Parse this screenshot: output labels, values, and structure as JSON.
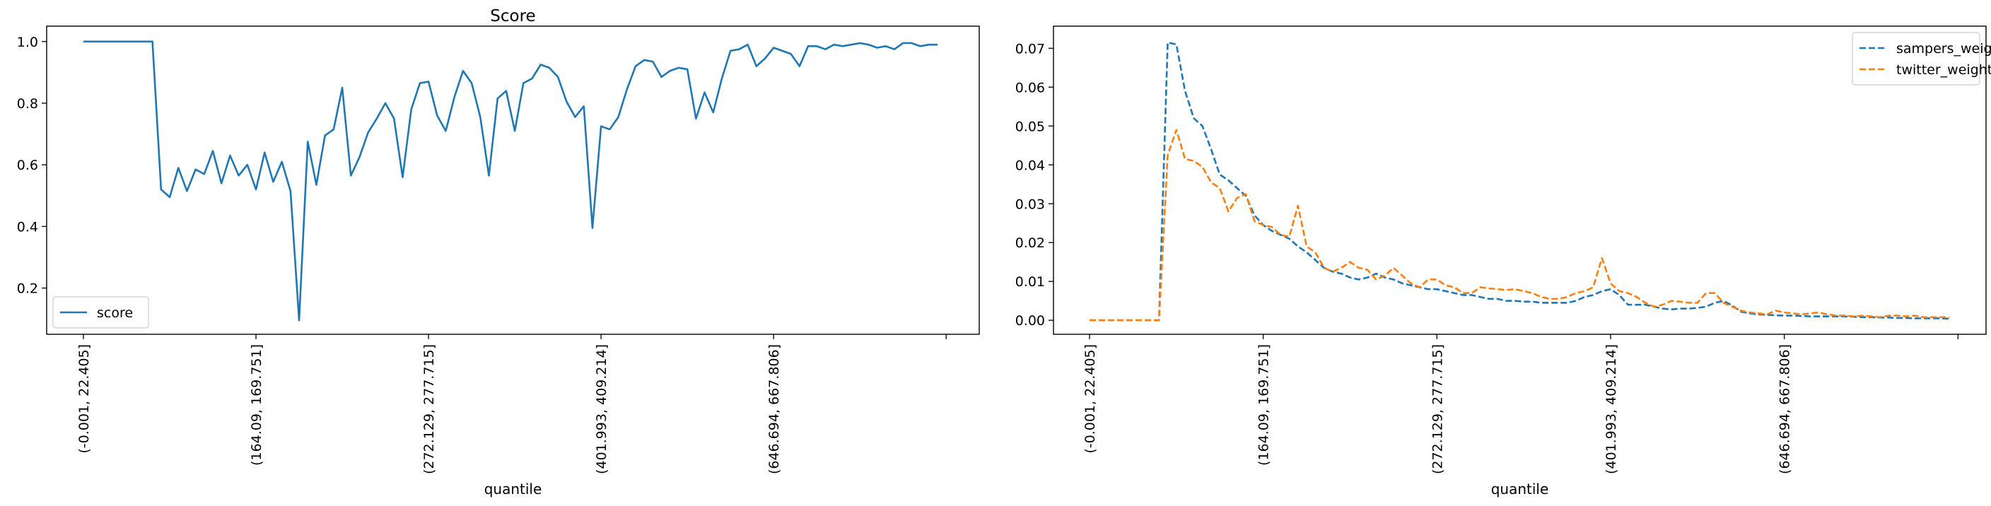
{
  "chart_data": [
    {
      "type": "line",
      "title": "Score",
      "xlabel": "quantile",
      "ylabel": "",
      "ylim": [
        0.05,
        1.05
      ],
      "yticks": [
        "0.2",
        "0.4",
        "0.6",
        "0.8",
        "1.0"
      ],
      "ytick_values": [
        0.2,
        0.4,
        0.6,
        0.8,
        1.0
      ],
      "xticks": [
        "(-0.001, 22.405]",
        "(164.09, 169.751]",
        "(272.129, 277.715]",
        "(401.993, 409.214]",
        "(646.694, 667.806]",
        ""
      ],
      "xtick_indices": [
        0,
        20,
        40,
        60,
        80,
        100
      ],
      "legend": "lower-left",
      "series": [
        {
          "name": "score",
          "color": "#1f77b4",
          "style": "solid",
          "values": [
            1.0,
            1.0,
            1.0,
            1.0,
            1.0,
            1.0,
            1.0,
            1.0,
            1.0,
            0.52,
            0.495,
            0.59,
            0.515,
            0.585,
            0.57,
            0.645,
            0.54,
            0.63,
            0.565,
            0.6,
            0.52,
            0.64,
            0.545,
            0.61,
            0.515,
            0.095,
            0.675,
            0.535,
            0.695,
            0.715,
            0.85,
            0.565,
            0.625,
            0.705,
            0.75,
            0.8,
            0.75,
            0.56,
            0.78,
            0.865,
            0.87,
            0.76,
            0.71,
            0.82,
            0.905,
            0.865,
            0.755,
            0.565,
            0.815,
            0.84,
            0.71,
            0.865,
            0.88,
            0.925,
            0.915,
            0.885,
            0.805,
            0.755,
            0.79,
            0.395,
            0.725,
            0.715,
            0.755,
            0.845,
            0.92,
            0.94,
            0.935,
            0.885,
            0.905,
            0.915,
            0.91,
            0.75,
            0.835,
            0.77,
            0.88,
            0.97,
            0.975,
            0.99,
            0.92,
            0.945,
            0.98,
            0.97,
            0.96,
            0.92,
            0.985,
            0.985,
            0.975,
            0.99,
            0.985,
            0.99,
            0.995,
            0.99,
            0.98,
            0.985,
            0.975,
            0.995,
            0.995,
            0.985,
            0.99,
            0.99
          ]
        }
      ]
    },
    {
      "type": "line",
      "title": "",
      "xlabel": "quantile",
      "ylabel": "",
      "ylim": [
        -0.0036,
        0.0757
      ],
      "yticks": [
        "0.00",
        "0.01",
        "0.02",
        "0.03",
        "0.04",
        "0.05",
        "0.06",
        "0.07"
      ],
      "ytick_values": [
        0,
        0.01,
        0.02,
        0.03,
        0.04,
        0.05,
        0.06,
        0.07
      ],
      "xticks": [
        "(-0.001, 22.405]",
        "(164.09, 169.751]",
        "(272.129, 277.715]",
        "(401.993, 409.214]",
        "(646.694, 667.806]",
        ""
      ],
      "xtick_indices": [
        0,
        20,
        40,
        60,
        80,
        100
      ],
      "legend": "upper-right",
      "series": [
        {
          "name": "sampers_weight",
          "color": "#1f77b4",
          "style": "dashed",
          "values": [
            0,
            0,
            0,
            0,
            0,
            0,
            0,
            0,
            0,
            0.0715,
            0.071,
            0.059,
            0.052,
            0.05,
            0.044,
            0.0375,
            0.036,
            0.034,
            0.032,
            0.027,
            0.0245,
            0.023,
            0.022,
            0.021,
            0.019,
            0.0175,
            0.0155,
            0.0135,
            0.0125,
            0.012,
            0.011,
            0.0105,
            0.011,
            0.012,
            0.011,
            0.0105,
            0.0095,
            0.009,
            0.0085,
            0.008,
            0.008,
            0.0075,
            0.007,
            0.0065,
            0.0065,
            0.006,
            0.0055,
            0.0055,
            0.005,
            0.005,
            0.0048,
            0.0048,
            0.0045,
            0.0045,
            0.0045,
            0.0045,
            0.005,
            0.006,
            0.0065,
            0.0075,
            0.008,
            0.0065,
            0.004,
            0.004,
            0.004,
            0.0035,
            0.003,
            0.0028,
            0.003,
            0.003,
            0.0032,
            0.0035,
            0.0045,
            0.005,
            0.0038,
            0.0022,
            0.0018,
            0.0015,
            0.0014,
            0.0013,
            0.0012,
            0.0012,
            0.0011,
            0.001,
            0.001,
            0.001,
            0.001,
            0.001,
            0.0009,
            0.0008,
            0.0008,
            0.0007,
            0.0007,
            0.0006,
            0.0006,
            0.0005,
            0.0005,
            0.0005,
            0.0005,
            0.0004
          ]
        },
        {
          "name": "twitter_weight",
          "color": "#ff7f0e",
          "style": "dashed",
          "values": [
            0,
            0,
            0,
            0,
            0,
            0,
            0,
            0,
            0,
            0.0425,
            0.049,
            0.0415,
            0.041,
            0.0395,
            0.0355,
            0.034,
            0.028,
            0.0315,
            0.0325,
            0.0255,
            0.0245,
            0.024,
            0.022,
            0.0215,
            0.0295,
            0.019,
            0.0175,
            0.0135,
            0.0125,
            0.0135,
            0.015,
            0.0135,
            0.013,
            0.0105,
            0.0115,
            0.0135,
            0.0115,
            0.0095,
            0.0085,
            0.0105,
            0.0105,
            0.009,
            0.0085,
            0.007,
            0.007,
            0.0085,
            0.0082,
            0.008,
            0.0078,
            0.008,
            0.0075,
            0.007,
            0.006,
            0.0055,
            0.0055,
            0.006,
            0.007,
            0.0075,
            0.0085,
            0.016,
            0.0095,
            0.0075,
            0.007,
            0.006,
            0.0045,
            0.0035,
            0.004,
            0.005,
            0.0048,
            0.0045,
            0.0045,
            0.007,
            0.007,
            0.0045,
            0.0035,
            0.0025,
            0.002,
            0.0018,
            0.0015,
            0.0025,
            0.002,
            0.0018,
            0.0015,
            0.0018,
            0.002,
            0.0015,
            0.0012,
            0.0012,
            0.001,
            0.0012,
            0.001,
            0.0008,
            0.0012,
            0.0012,
            0.001,
            0.0012,
            0.0008,
            0.0008,
            0.0008,
            0.0008
          ]
        }
      ]
    }
  ]
}
